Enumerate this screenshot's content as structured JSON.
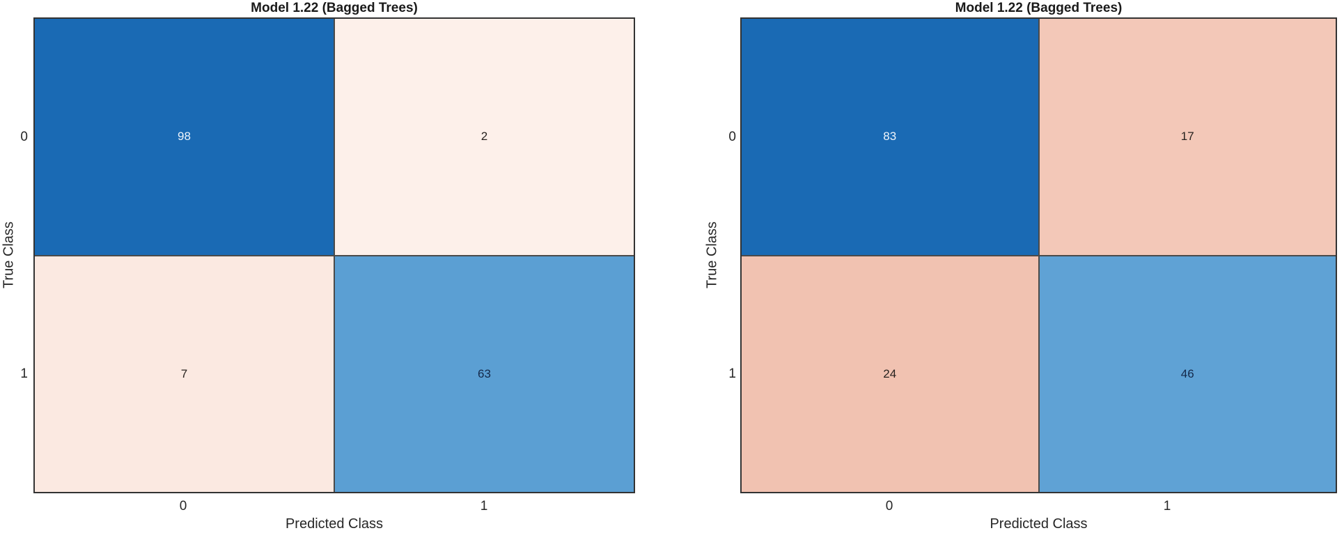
{
  "figure": {
    "background": "#ffffff",
    "border_color": "#333333",
    "divider_color": "#4a4a4a",
    "title_color": "#1a1a1a",
    "label_color": "#262626"
  },
  "chart_data": [
    {
      "type": "heatmap",
      "title": "Model 1.22 (Bagged Trees)",
      "xlabel": "Predicted Class",
      "ylabel": "True Class",
      "x_categories": [
        "0",
        "1"
      ],
      "y_categories": [
        "0",
        "1"
      ],
      "values": [
        [
          98,
          2
        ],
        [
          7,
          63
        ]
      ],
      "legend": "none",
      "grid": "cell-borders"
    },
    {
      "type": "heatmap",
      "title": "Model 1.22 (Bagged Trees)",
      "xlabel": "Predicted Class",
      "ylabel": "True Class",
      "x_categories": [
        "0",
        "1"
      ],
      "y_categories": [
        "0",
        "1"
      ],
      "values": [
        [
          83,
          17
        ],
        [
          24,
          46
        ]
      ],
      "legend": "none",
      "grid": "cell-borders"
    }
  ],
  "styles": {
    "panels": [
      {
        "cells": [
          [
            {
              "bg": "#1a6ab4",
              "fg": "#eef4fb"
            },
            {
              "bg": "#fdf0ea",
              "fg": "#27221f"
            }
          ],
          [
            {
              "bg": "#fbe9e1",
              "fg": "#27221f"
            },
            {
              "bg": "#5b9fd3",
              "fg": "#14294a"
            }
          ]
        ]
      },
      {
        "cells": [
          [
            {
              "bg": "#1a6ab4",
              "fg": "#eef4fb"
            },
            {
              "bg": "#f3c8b8",
              "fg": "#27221f"
            }
          ],
          [
            {
              "bg": "#f1c2b1",
              "fg": "#27221f"
            },
            {
              "bg": "#5fa2d5",
              "fg": "#14294a"
            }
          ]
        ]
      }
    ]
  }
}
